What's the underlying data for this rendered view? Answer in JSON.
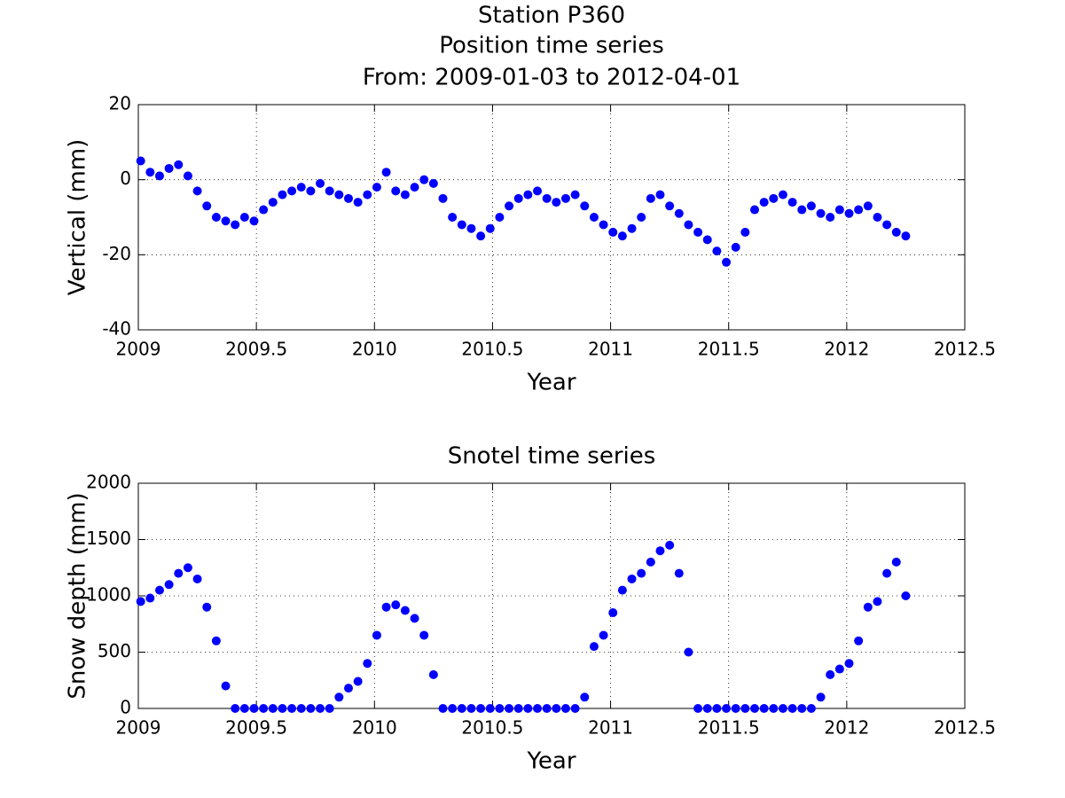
{
  "chart_data": [
    {
      "type": "scatter",
      "title": "Station P360",
      "subtitle": "Position time series",
      "date_range": "From: 2009-01-03 to 2012-04-01",
      "xlabel": "Year",
      "ylabel": "Vertical (mm)",
      "color": "#0000ff",
      "grid": true,
      "xlim": [
        2009,
        2012.5
      ],
      "xticks": [
        2009,
        2009.5,
        2010,
        2010.5,
        2011,
        2011.5,
        2012,
        2012.5
      ],
      "ylim": [
        -40,
        20
      ],
      "yticks": [
        -40,
        -20,
        0,
        20
      ],
      "x": [
        2009.01,
        2009.05,
        2009.09,
        2009.13,
        2009.17,
        2009.21,
        2009.25,
        2009.29,
        2009.33,
        2009.37,
        2009.41,
        2009.45,
        2009.49,
        2009.53,
        2009.57,
        2009.61,
        2009.65,
        2009.69,
        2009.73,
        2009.77,
        2009.81,
        2009.85,
        2009.89,
        2009.93,
        2009.97,
        2010.01,
        2010.05,
        2010.09,
        2010.13,
        2010.17,
        2010.21,
        2010.25,
        2010.29,
        2010.33,
        2010.37,
        2010.41,
        2010.45,
        2010.49,
        2010.53,
        2010.57,
        2010.61,
        2010.65,
        2010.69,
        2010.73,
        2010.77,
        2010.81,
        2010.85,
        2010.89,
        2010.93,
        2010.97,
        2011.01,
        2011.05,
        2011.09,
        2011.13,
        2011.17,
        2011.21,
        2011.25,
        2011.29,
        2011.33,
        2011.37,
        2011.41,
        2011.45,
        2011.49,
        2011.53,
        2011.57,
        2011.61,
        2011.65,
        2011.69,
        2011.73,
        2011.77,
        2011.81,
        2011.85,
        2011.89,
        2011.93,
        2011.97,
        2012.01,
        2012.05,
        2012.09,
        2012.13,
        2012.17,
        2012.21,
        2012.25
      ],
      "values": [
        5,
        2,
        1,
        3,
        4,
        1,
        -3,
        -7,
        -10,
        -11,
        -12,
        -10,
        -11,
        -8,
        -6,
        -4,
        -3,
        -2,
        -3,
        -1,
        -3,
        -4,
        -5,
        -6,
        -4,
        -2,
        2,
        -3,
        -4,
        -2,
        0,
        -1,
        -5,
        -10,
        -12,
        -13,
        -15,
        -13,
        -10,
        -7,
        -5,
        -4,
        -3,
        -5,
        -6,
        -5,
        -4,
        -7,
        -10,
        -12,
        -14,
        -15,
        -13,
        -10,
        -5,
        -4,
        -7,
        -9,
        -12,
        -14,
        -16,
        -19,
        -22,
        -18,
        -14,
        -8,
        -6,
        -5,
        -4,
        -6,
        -8,
        -7,
        -9,
        -10,
        -8,
        -9,
        -8,
        -7,
        -10,
        -12,
        -14,
        -15
      ]
    },
    {
      "type": "scatter",
      "title": "Snotel time series",
      "xlabel": "Year",
      "ylabel": "Snow depth (mm)",
      "color": "#0000ff",
      "grid": true,
      "xlim": [
        2009,
        2012.5
      ],
      "xticks": [
        2009,
        2009.5,
        2010,
        2010.5,
        2011,
        2011.5,
        2012,
        2012.5
      ],
      "ylim": [
        0,
        2000
      ],
      "yticks": [
        0,
        500,
        1000,
        1500,
        2000
      ],
      "x": [
        2009.01,
        2009.05,
        2009.09,
        2009.13,
        2009.17,
        2009.21,
        2009.25,
        2009.29,
        2009.33,
        2009.37,
        2009.41,
        2009.45,
        2009.49,
        2009.53,
        2009.57,
        2009.61,
        2009.65,
        2009.69,
        2009.73,
        2009.77,
        2009.81,
        2009.85,
        2009.89,
        2009.93,
        2009.97,
        2010.01,
        2010.05,
        2010.09,
        2010.13,
        2010.17,
        2010.21,
        2010.25,
        2010.29,
        2010.33,
        2010.37,
        2010.41,
        2010.45,
        2010.49,
        2010.53,
        2010.57,
        2010.61,
        2010.65,
        2010.69,
        2010.73,
        2010.77,
        2010.81,
        2010.85,
        2010.89,
        2010.93,
        2010.97,
        2011.01,
        2011.05,
        2011.09,
        2011.13,
        2011.17,
        2011.21,
        2011.25,
        2011.29,
        2011.33,
        2011.37,
        2011.41,
        2011.45,
        2011.49,
        2011.53,
        2011.57,
        2011.61,
        2011.65,
        2011.69,
        2011.73,
        2011.77,
        2011.81,
        2011.85,
        2011.89,
        2011.93,
        2011.97,
        2012.01,
        2012.05,
        2012.09,
        2012.13,
        2012.17,
        2012.21,
        2012.25
      ],
      "values": [
        950,
        980,
        1050,
        1100,
        1200,
        1250,
        1150,
        900,
        600,
        200,
        0,
        0,
        0,
        0,
        0,
        0,
        0,
        0,
        0,
        0,
        0,
        100,
        180,
        240,
        400,
        650,
        900,
        920,
        870,
        800,
        650,
        300,
        0,
        0,
        0,
        0,
        0,
        0,
        0,
        0,
        0,
        0,
        0,
        0,
        0,
        0,
        0,
        100,
        550,
        650,
        850,
        1050,
        1150,
        1200,
        1300,
        1400,
        1450,
        1200,
        500,
        0,
        0,
        0,
        0,
        0,
        0,
        0,
        0,
        0,
        0,
        0,
        0,
        0,
        100,
        300,
        350,
        400,
        600,
        900,
        950,
        1200,
        1300,
        1000
      ]
    }
  ]
}
